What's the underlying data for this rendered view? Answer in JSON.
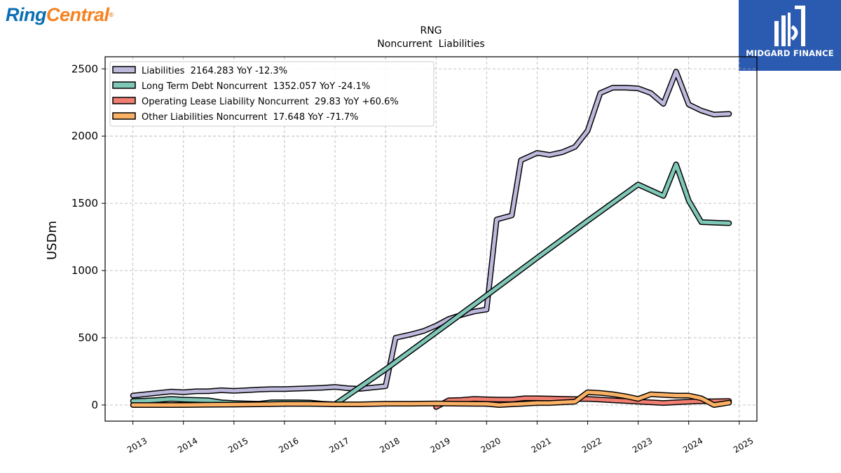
{
  "brand": {
    "left_part1": "Ring",
    "left_part2": "Central",
    "left_reg": "®",
    "right_text": "MIDGARD FINANCE"
  },
  "colors": {
    "liabilities": "#bcb9dc",
    "long_term_debt": "#7fc8b8",
    "operating_lease": "#f07f72",
    "other": "#fbb165",
    "outline": "#000000",
    "grid": "#b0b0b0"
  },
  "chart_data": {
    "type": "line",
    "title": "RNG",
    "subtitle": "Noncurrent  Liabilities",
    "xlabel": "",
    "ylabel": "USDm",
    "xlim": [
      2012.45,
      2025.35
    ],
    "ylim": [
      -120,
      2590
    ],
    "x_ticks": [
      "2013",
      "2014",
      "2015",
      "2016",
      "2017",
      "2018",
      "2019",
      "2020",
      "2021",
      "2022",
      "2023",
      "2024",
      "2025"
    ],
    "y_ticks": [
      "0",
      "500",
      "1000",
      "1500",
      "2000",
      "2500"
    ],
    "grid": true,
    "legend_position": "top-left",
    "series": [
      {
        "name": "Liabilities",
        "legend": "Liabilities  2164.283 YoY -12.3%",
        "color_key": "liabilities",
        "points": [
          [
            2013.0,
            70
          ],
          [
            2013.25,
            80
          ],
          [
            2013.5,
            90
          ],
          [
            2013.75,
            100
          ],
          [
            2014.0,
            95
          ],
          [
            2014.25,
            102
          ],
          [
            2014.5,
            103
          ],
          [
            2014.75,
            110
          ],
          [
            2015.0,
            105
          ],
          [
            2015.25,
            110
          ],
          [
            2015.5,
            115
          ],
          [
            2015.75,
            118
          ],
          [
            2016.0,
            118
          ],
          [
            2016.25,
            122
          ],
          [
            2016.5,
            125
          ],
          [
            2016.75,
            128
          ],
          [
            2017.0,
            135
          ],
          [
            2017.25,
            125
          ],
          [
            2017.5,
            120
          ],
          [
            2017.75,
            130
          ],
          [
            2018.0,
            140
          ],
          [
            2018.2,
            500
          ],
          [
            2018.5,
            525
          ],
          [
            2018.75,
            550
          ],
          [
            2019.0,
            590
          ],
          [
            2019.25,
            640
          ],
          [
            2019.5,
            670
          ],
          [
            2019.75,
            695
          ],
          [
            2020.0,
            710
          ],
          [
            2020.2,
            1380
          ],
          [
            2020.5,
            1410
          ],
          [
            2020.68,
            1820
          ],
          [
            2021.0,
            1875
          ],
          [
            2021.25,
            1860
          ],
          [
            2021.5,
            1880
          ],
          [
            2021.75,
            1920
          ],
          [
            2022.0,
            2040
          ],
          [
            2022.25,
            2320
          ],
          [
            2022.5,
            2360
          ],
          [
            2022.75,
            2360
          ],
          [
            2023.0,
            2355
          ],
          [
            2023.25,
            2320
          ],
          [
            2023.5,
            2240
          ],
          [
            2023.75,
            2480
          ],
          [
            2024.0,
            2235
          ],
          [
            2024.25,
            2190
          ],
          [
            2024.5,
            2160
          ],
          [
            2024.8,
            2165
          ]
        ]
      },
      {
        "name": "Long Term Debt Noncurrent",
        "legend": "Long Term Debt Noncurrent  1352.057 YoY -24.1%",
        "color_key": "long_term_debt",
        "points": [
          [
            2013.0,
            30
          ],
          [
            2013.25,
            32
          ],
          [
            2013.5,
            38
          ],
          [
            2013.75,
            45
          ],
          [
            2014.0,
            40
          ],
          [
            2014.25,
            38
          ],
          [
            2014.5,
            35
          ],
          [
            2014.75,
            20
          ],
          [
            2015.0,
            15
          ],
          [
            2015.25,
            12
          ],
          [
            2015.5,
            10
          ],
          [
            2015.75,
            20
          ],
          [
            2016.0,
            20
          ],
          [
            2016.25,
            20
          ],
          [
            2016.5,
            18
          ],
          [
            2016.75,
            10
          ],
          [
            2017.0,
            5
          ],
          [
            2018.0,
            265
          ],
          [
            2019.0,
            540
          ],
          [
            2020.0,
            815
          ],
          [
            2021.0,
            1095
          ],
          [
            2022.0,
            1370
          ],
          [
            2023.0,
            1640
          ],
          [
            2023.5,
            1555
          ],
          [
            2023.75,
            1790
          ],
          [
            2024.0,
            1520
          ],
          [
            2024.25,
            1360
          ],
          [
            2024.8,
            1352
          ]
        ]
      },
      {
        "name": "Operating Lease Liability Noncurrent",
        "legend": "Operating Lease Liability Noncurrent  29.83 YoY +60.6%",
        "color_key": "operating_lease",
        "points": [
          [
            2019.0,
            -15
          ],
          [
            2019.25,
            35
          ],
          [
            2019.5,
            38
          ],
          [
            2019.75,
            45
          ],
          [
            2020.0,
            42
          ],
          [
            2020.25,
            40
          ],
          [
            2020.5,
            40
          ],
          [
            2020.75,
            50
          ],
          [
            2021.0,
            50
          ],
          [
            2021.25,
            48
          ],
          [
            2021.5,
            46
          ],
          [
            2021.75,
            44
          ],
          [
            2022.0,
            45
          ],
          [
            2022.25,
            40
          ],
          [
            2022.5,
            35
          ],
          [
            2022.75,
            30
          ],
          [
            2023.0,
            25
          ],
          [
            2023.25,
            20
          ],
          [
            2023.5,
            15
          ],
          [
            2023.75,
            20
          ],
          [
            2024.0,
            25
          ],
          [
            2024.25,
            28
          ],
          [
            2024.5,
            28
          ],
          [
            2024.8,
            30
          ]
        ]
      },
      {
        "name": "Other Liabilities Noncurrent",
        "legend": "Other Liabilities Noncurrent  17.648 YoY -71.7%",
        "color_key": "other",
        "points": [
          [
            2013.0,
            0
          ],
          [
            2013.5,
            0
          ],
          [
            2014.0,
            0
          ],
          [
            2014.5,
            2
          ],
          [
            2015.0,
            3
          ],
          [
            2015.5,
            5
          ],
          [
            2016.0,
            8
          ],
          [
            2016.5,
            8
          ],
          [
            2017.0,
            5
          ],
          [
            2017.5,
            5
          ],
          [
            2018.0,
            10
          ],
          [
            2018.5,
            10
          ],
          [
            2019.0,
            12
          ],
          [
            2019.5,
            10
          ],
          [
            2020.0,
            8
          ],
          [
            2020.25,
            0
          ],
          [
            2020.5,
            5
          ],
          [
            2020.75,
            10
          ],
          [
            2021.0,
            15
          ],
          [
            2021.25,
            15
          ],
          [
            2021.5,
            20
          ],
          [
            2021.75,
            25
          ],
          [
            2022.0,
            95
          ],
          [
            2022.25,
            90
          ],
          [
            2022.5,
            80
          ],
          [
            2022.75,
            65
          ],
          [
            2023.0,
            45
          ],
          [
            2023.25,
            80
          ],
          [
            2023.5,
            75
          ],
          [
            2023.75,
            70
          ],
          [
            2024.0,
            70
          ],
          [
            2024.25,
            50
          ],
          [
            2024.5,
            0
          ],
          [
            2024.8,
            17.648
          ]
        ]
      }
    ]
  }
}
